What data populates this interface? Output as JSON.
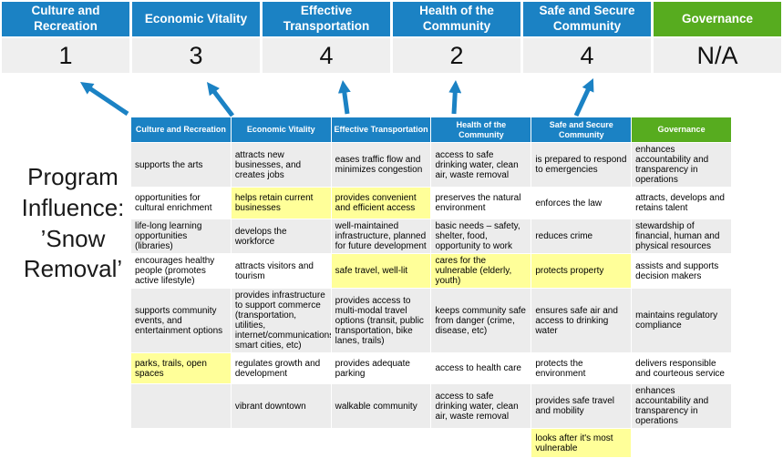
{
  "program_label": "Program Influence: ’Snow Removal’",
  "colors": {
    "blue": "#1b82c4",
    "green": "#57ac1f",
    "highlight": "#ffff99",
    "row_gray": "#ececec",
    "score_bg": "#efefef",
    "arrow": "#1b82c4"
  },
  "scorecard": {
    "columns": [
      {
        "label": "Culture and Recreation",
        "score": "1",
        "theme": "blue"
      },
      {
        "label": "Economic Vitality",
        "score": "3",
        "theme": "blue"
      },
      {
        "label": "Effective Transportation",
        "score": "4",
        "theme": "blue"
      },
      {
        "label": "Health of the Community",
        "score": "2",
        "theme": "blue"
      },
      {
        "label": "Safe and Secure Community",
        "score": "4",
        "theme": "blue"
      },
      {
        "label": "Governance",
        "score": "N/A",
        "theme": "green"
      }
    ]
  },
  "matrix": {
    "headers": [
      {
        "label": "Culture and Recreation",
        "theme": "blue"
      },
      {
        "label": "Economic Vitality",
        "theme": "blue"
      },
      {
        "label": "Effective Transportation",
        "theme": "blue"
      },
      {
        "label": "Health of the Community",
        "theme": "blue"
      },
      {
        "label": "Safe and Secure Community",
        "theme": "blue"
      },
      {
        "label": "Governance",
        "theme": "green"
      }
    ],
    "rows": [
      {
        "cells": [
          {
            "text": "supports the arts",
            "highlight": false
          },
          {
            "text": "attracts new businesses, and creates jobs",
            "highlight": false
          },
          {
            "text": "eases traffic flow and minimizes congestion",
            "highlight": true
          },
          {
            "text": "access to safe drinking water, clean air, waste removal",
            "highlight": false
          },
          {
            "text": "is prepared to respond to emergencies",
            "highlight": true
          },
          {
            "text": "enhances accountability and transparency in operations",
            "highlight": false
          }
        ]
      },
      {
        "cells": [
          {
            "text": "opportunities for cultural enrichment",
            "highlight": false
          },
          {
            "text": "helps retain current businesses",
            "highlight": true
          },
          {
            "text": "provides convenient and efficient access",
            "highlight": true
          },
          {
            "text": "preserves the natural environment",
            "highlight": false
          },
          {
            "text": "enforces the law",
            "highlight": false
          },
          {
            "text": "attracts, develops and retains talent",
            "highlight": false
          }
        ]
      },
      {
        "cells": [
          {
            "text": "life-long learning opportunities (libraries)",
            "highlight": false
          },
          {
            "text": "develops the workforce",
            "highlight": false
          },
          {
            "text": "well-maintained infrastructure, planned for future development",
            "highlight": false
          },
          {
            "text": "basic needs – safety, shelter, food, opportunity to work",
            "highlight": true
          },
          {
            "text": "reduces crime",
            "highlight": false
          },
          {
            "text": "stewardship of financial, human and physical resources",
            "highlight": false
          }
        ]
      },
      {
        "cells": [
          {
            "text": "encourages healthy people (promotes active lifestyle)",
            "highlight": false
          },
          {
            "text": "attracts visitors and tourism",
            "highlight": false
          },
          {
            "text": "safe travel, well-lit",
            "highlight": true
          },
          {
            "text": "cares for the vulnerable (elderly, youth)",
            "highlight": true
          },
          {
            "text": "protects property",
            "highlight": true
          },
          {
            "text": "assists and supports decision makers",
            "highlight": false
          }
        ]
      },
      {
        "cells": [
          {
            "text": "supports community events, and entertainment options",
            "highlight": false
          },
          {
            "text": "provides infrastructure to support commerce (transportation, utilities, internet/communications, smart cities, etc)",
            "highlight": true
          },
          {
            "text": "provides access to multi-modal travel options (transit, public transportation, bike lanes, trails)",
            "highlight": true
          },
          {
            "text": "keeps community safe from danger (crime, disease, etc)",
            "highlight": true
          },
          {
            "text": "ensures safe air and access to drinking water",
            "highlight": false
          },
          {
            "text": "maintains regulatory compliance",
            "highlight": false
          }
        ]
      },
      {
        "cells": [
          {
            "text": "parks, trails, open spaces",
            "highlight": true
          },
          {
            "text": "regulates growth and development",
            "highlight": false
          },
          {
            "text": "provides adequate parking",
            "highlight": false
          },
          {
            "text": "access to health care",
            "highlight": false
          },
          {
            "text": "protects the environment",
            "highlight": false
          },
          {
            "text": "delivers responsible and courteous service",
            "highlight": false
          }
        ]
      },
      {
        "cells": [
          {
            "text": "",
            "highlight": false
          },
          {
            "text": "vibrant downtown",
            "highlight": false
          },
          {
            "text": "walkable community",
            "highlight": false
          },
          {
            "text": "access to safe drinking water, clean air, waste removal",
            "highlight": false
          },
          {
            "text": "provides safe travel and mobility",
            "highlight": true
          },
          {
            "text": "enhances accountability and transparency in operations",
            "highlight": false
          }
        ]
      },
      {
        "cells": [
          {
            "text": "",
            "highlight": false
          },
          {
            "text": "",
            "highlight": false
          },
          {
            "text": "",
            "highlight": false
          },
          {
            "text": "",
            "highlight": false
          },
          {
            "text": "looks after it's most vulnerable",
            "highlight": true
          },
          {
            "text": "",
            "highlight": false
          }
        ]
      }
    ]
  }
}
